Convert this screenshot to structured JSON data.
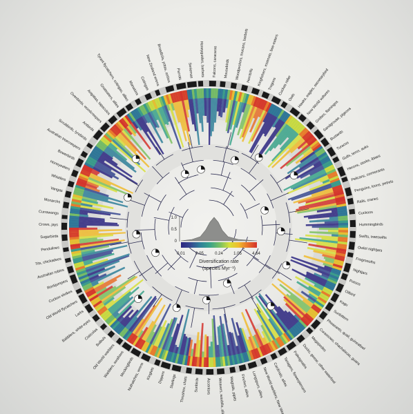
{
  "clade_labels": [
    "Falcons, caracaras",
    "Mousebirds",
    "Woodpeckers, toucans, barbets",
    "Hornbills",
    "Kingfishers, motmots, bee-eaters",
    "Trogons",
    "Cuckoo roller",
    "Owls",
    "Hawks, eagles, secretarybird",
    "New World vultures",
    "Grebes, flamingos",
    "Sandgrouse, pigeons",
    "Bustards",
    "Turacos",
    "Gulls, terns, auks",
    "Herons, storks, ibises",
    "Pelicans, cormorants",
    "Penguins, loons, petrels",
    "Rails, cranes",
    "Cuckoos",
    "Hummingbirds",
    "Swifts, treeswifts",
    "Owlet nightjars",
    "Frogmouths",
    "Nightjars",
    "Potoos",
    "Oilbird",
    "Kagu",
    "Sunbittern",
    "Pheasants, quail, guineafowl",
    "Curassows, chachalacas, guans",
    "Megapodes",
    "Ducks, geese, other waterfowl",
    "Paleognaths",
    "Tanagers, flowerpiercers",
    "Cardinals, allies",
    "New World warblers, New World blackbirds",
    "Longspurs, allies",
    "Finches, allies",
    "Wagtails, pipits",
    "Weavers, waxbills, allies",
    "Accentors",
    "Sunbirds",
    "Thrushes, chats",
    "Starlings",
    "Dippers",
    "Kinglets",
    "Nuthatches, wrens",
    "Mockingbirds",
    "Warblers, swallows",
    "Old World warblers",
    "Bulbuls",
    "Cisticolas",
    "Babblers, white-eyes",
    "Larks",
    "Old World flycatchers",
    "Cuckoo shrikes",
    "Rockjumpers",
    "Australian robins",
    "Tits, chickadees",
    "Pendulines",
    "Sugarbirds",
    "Crows, jays",
    "Currawongs",
    "Monarchs",
    "Vangas",
    "Whistlers",
    "Honeyeaters",
    "Bowerbirds",
    "Australian treecreepers",
    "Scrubbirds, lyrebirds",
    "Antbirds",
    "Ovenbirds, woodcreepers",
    "Antpittas, tapaculos",
    "Gnateaters, allies",
    "Tyrant flycatchers, cotingas, allies",
    "Manakins",
    "Cotingas",
    "New Zealand wrens",
    "Broadbills, pittas, asities",
    "Parrots",
    "Seriemas",
    "Honeyguides, barbets"
  ],
  "inset": {
    "title": "Diversification rate",
    "unit": "(species Myr⁻¹)",
    "y_ticks": [
      "0",
      "0.5",
      "1.0"
    ],
    "x_ticks": [
      "0.01",
      "0.05",
      "0.24",
      "1.05",
      "4.64"
    ],
    "colors": [
      "#2c2680",
      "#36468f",
      "#2f7f99",
      "#3aa38a",
      "#7cc160",
      "#d7df3a",
      "#f0bb2e",
      "#e8702a",
      "#d3322b"
    ]
  }
}
